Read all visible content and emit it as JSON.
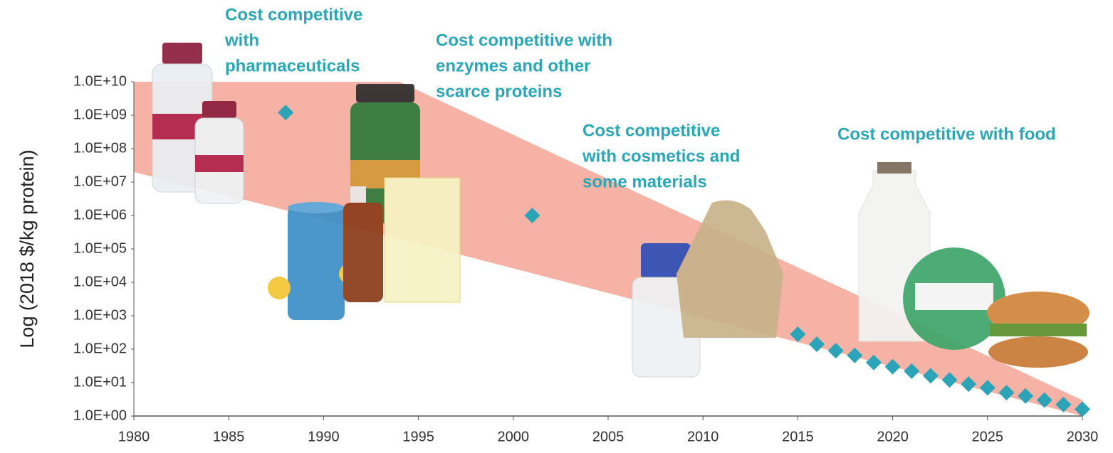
{
  "chart_data": {
    "type": "scatter",
    "ylabel": "Log (2018 $/kg protein)",
    "log_scale_y": true,
    "xlim": [
      1980,
      2030
    ],
    "xticks": [
      1980,
      1985,
      1990,
      1995,
      2000,
      2005,
      2010,
      2015,
      2020,
      2025,
      2030
    ],
    "ylim": [
      1,
      10000000000
    ],
    "yticks": [
      {
        "value": 1,
        "label": "1.0E+00"
      },
      {
        "value": 10,
        "label": "1.0E+01"
      },
      {
        "value": 100,
        "label": "1.0E+02"
      },
      {
        "value": 1000,
        "label": "1.0E+03"
      },
      {
        "value": 10000,
        "label": "1.0E+04"
      },
      {
        "value": 100000,
        "label": "1.0E+05"
      },
      {
        "value": 1000000,
        "label": "1.0E+06"
      },
      {
        "value": 10000000,
        "label": "1.0E+07"
      },
      {
        "value": 100000000,
        "label": "1.0E+08"
      },
      {
        "value": 1000000000,
        "label": "1.0E+09"
      },
      {
        "value": 10000000000,
        "label": "1.0E+10"
      }
    ],
    "band": {
      "color": "#f6b3a5",
      "x": [
        1980,
        1994,
        2030
      ],
      "upper": [
        10000000000,
        10000000000,
        3
      ],
      "lower": [
        20000000,
        200000,
        1
      ]
    },
    "markers": {
      "color": "#2aa4b6",
      "x": [
        1988,
        2001,
        2015,
        2016,
        2017,
        2018,
        2019,
        2020,
        2021,
        2022,
        2023,
        2024,
        2025,
        2026,
        2027,
        2028,
        2029,
        2030
      ],
      "values": [
        1200000000,
        1000000,
        280,
        140,
        90,
        65,
        40,
        30,
        22,
        16,
        12,
        9,
        7,
        5,
        4,
        3,
        2.2,
        1.6
      ]
    },
    "annotations": [
      [
        "Cost competitive",
        "with",
        "pharmaceuticals"
      ],
      [
        "Cost competitive with",
        "enzymes and other",
        "scarce proteins"
      ],
      [
        "Cost competitive",
        "with cosmetics  and",
        "some materials"
      ],
      [
        "Cost competitive with food"
      ]
    ]
  }
}
